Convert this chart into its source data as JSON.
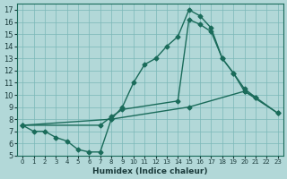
{
  "xlabel": "Humidex (Indice chaleur)",
  "background_color": "#b2d8d8",
  "line_color": "#1a6b5a",
  "grid_color": "#7ab8b8",
  "xlim": [
    -0.5,
    23.5
  ],
  "ylim": [
    5,
    17.5
  ],
  "yticks": [
    5,
    6,
    7,
    8,
    9,
    10,
    11,
    12,
    13,
    14,
    15,
    16,
    17
  ],
  "xticks": [
    0,
    1,
    2,
    3,
    4,
    5,
    6,
    7,
    8,
    9,
    10,
    11,
    12,
    13,
    14,
    15,
    16,
    17,
    18,
    19,
    20,
    21,
    22,
    23
  ],
  "curve1_x": [
    0,
    1,
    2,
    3,
    4,
    5,
    6,
    7,
    8,
    9,
    10,
    11,
    12,
    13,
    14,
    15,
    16,
    17,
    18,
    19,
    20,
    21
  ],
  "curve1_y": [
    7.5,
    7.0,
    7.0,
    6.5,
    6.2,
    5.5,
    5.3,
    5.3,
    8.0,
    9.0,
    11.0,
    12.5,
    13.0,
    14.0,
    14.8,
    17.0,
    16.5,
    15.5,
    13.0,
    11.8,
    10.5,
    9.8
  ],
  "curve2_x": [
    0,
    8,
    15,
    20,
    23
  ],
  "curve2_y": [
    7.5,
    8.0,
    9.0,
    10.3,
    8.5
  ],
  "curve3_x": [
    0,
    7,
    8,
    9,
    14,
    15,
    16,
    17,
    18,
    19,
    20,
    21,
    23
  ],
  "curve3_y": [
    7.5,
    7.5,
    8.2,
    8.8,
    9.5,
    16.2,
    15.8,
    15.2,
    13.0,
    11.8,
    10.3,
    9.8,
    8.5
  ]
}
